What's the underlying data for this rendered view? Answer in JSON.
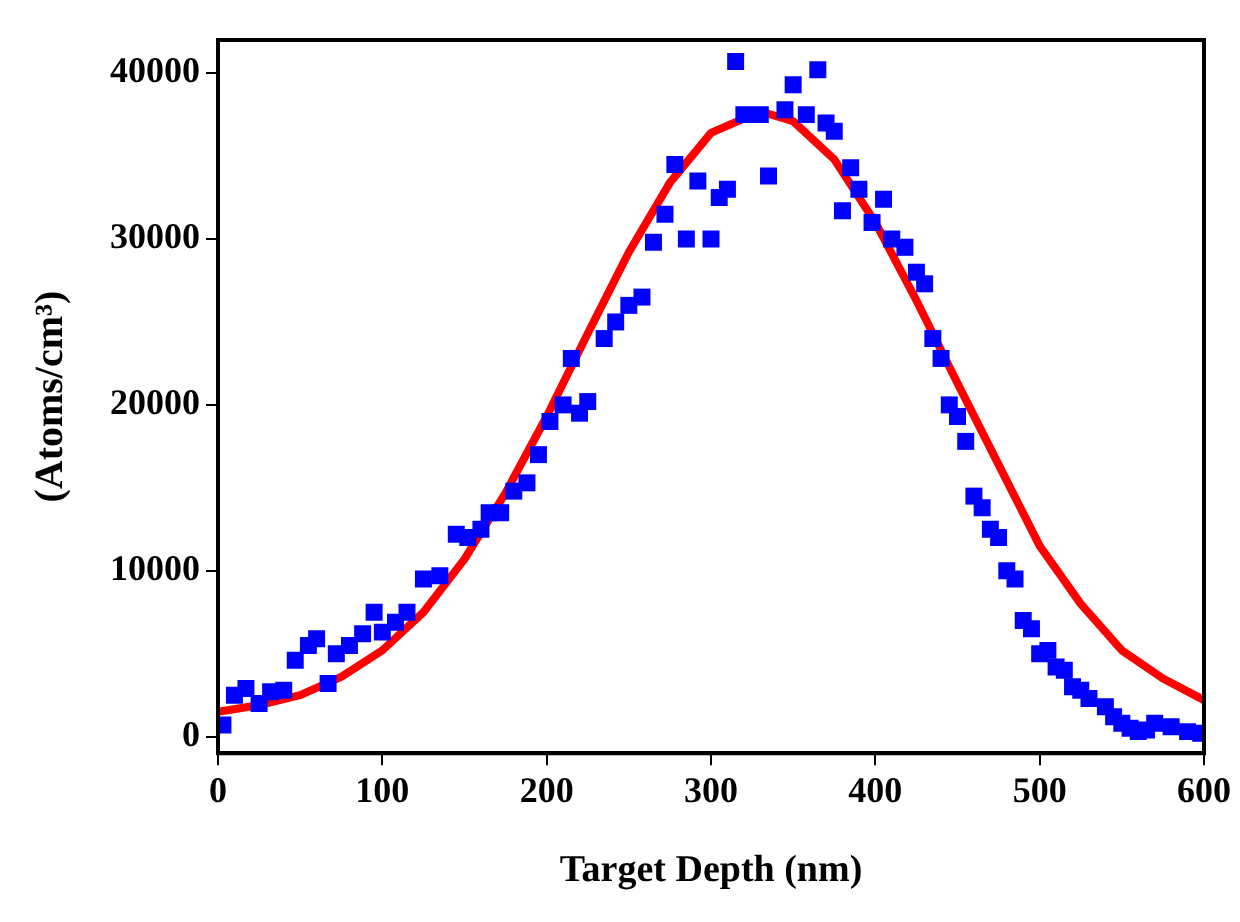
{
  "chart_data": {
    "type": "scatter",
    "xlabel": "Target Depth (nm)",
    "ylabel": "(Atoms/cm³)",
    "xlim": [
      0,
      600
    ],
    "xticks": [
      0,
      100,
      200,
      300,
      400,
      500,
      600
    ],
    "ylim": [
      -1000,
      42000
    ],
    "yticks": [
      0,
      10000,
      20000,
      30000,
      40000
    ],
    "grid": false,
    "legend": false,
    "series": [
      {
        "type": "scatter",
        "color": "#0000ff",
        "marker": "square",
        "x": [
          3,
          10,
          17,
          25,
          32,
          40,
          47,
          55,
          60,
          67,
          72,
          80,
          88,
          95,
          100,
          108,
          115,
          125,
          135,
          145,
          152,
          160,
          165,
          172,
          180,
          188,
          195,
          202,
          210,
          215,
          220,
          225,
          235,
          242,
          250,
          258,
          265,
          272,
          278,
          285,
          292,
          300,
          305,
          310,
          315,
          320,
          330,
          335,
          345,
          350,
          358,
          365,
          370,
          375,
          380,
          385,
          390,
          398,
          405,
          410,
          418,
          425,
          430,
          435,
          440,
          445,
          450,
          455,
          460,
          465,
          470,
          475,
          480,
          485,
          490,
          495,
          500,
          505,
          510,
          515,
          520,
          525,
          530,
          540,
          545,
          550,
          555,
          560,
          565,
          570,
          580,
          590,
          598
        ],
        "values": [
          700,
          2500,
          2900,
          2000,
          2700,
          2800,
          4600,
          5500,
          5900,
          3200,
          5000,
          5500,
          6200,
          7500,
          6300,
          6900,
          7500,
          9500,
          9700,
          12200,
          12000,
          12500,
          13500,
          13500,
          14800,
          15300,
          17000,
          19000,
          20000,
          22800,
          19500,
          20200,
          24000,
          25000,
          26000,
          26500,
          29800,
          31500,
          34500,
          30000,
          33500,
          30000,
          32500,
          33000,
          40700,
          37500,
          37500,
          33800,
          37800,
          39300,
          37500,
          40200,
          37000,
          36500,
          31700,
          34300,
          33000,
          31000,
          32400,
          30000,
          29500,
          28000,
          27300,
          24000,
          22800,
          20000,
          19300,
          17800,
          14500,
          13800,
          12500,
          12000,
          10000,
          9500,
          7000,
          6500,
          5000,
          5200,
          4200,
          4000,
          3000,
          2800,
          2300,
          1800,
          1200,
          800,
          500,
          300,
          400,
          800,
          600,
          300,
          200
        ]
      },
      {
        "type": "line",
        "color": "#ff0000",
        "marker": "none",
        "line_style": "solid",
        "x": [
          0,
          25,
          50,
          75,
          100,
          125,
          150,
          175,
          200,
          225,
          250,
          275,
          300,
          330,
          350,
          375,
          400,
          425,
          450,
          475,
          500,
          525,
          550,
          575,
          600
        ],
        "values": [
          1500,
          1900,
          2500,
          3600,
          5200,
          7500,
          10700,
          14700,
          19300,
          24300,
          29200,
          33400,
          36400,
          37700,
          37100,
          34800,
          31000,
          26300,
          21300,
          16400,
          11500,
          8000,
          5200,
          3500,
          2200
        ]
      }
    ]
  }
}
